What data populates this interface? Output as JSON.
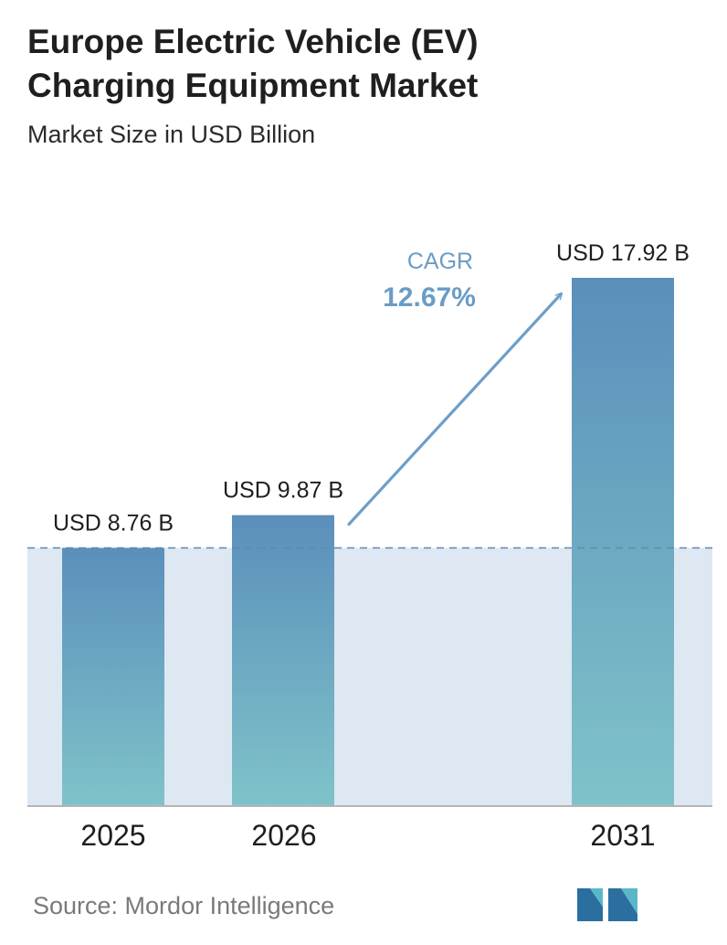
{
  "header": {
    "title_line1": "Europe Electric Vehicle (EV)",
    "title_line2": "Charging Equipment Market",
    "subtitle": "Market Size in USD Billion"
  },
  "colors": {
    "bar_top": "#5b8fbb",
    "bar_bottom": "#7fc3c9",
    "band": "#dde8f2",
    "dashed_line": "#5d89b3",
    "cagr_text": "#6a9cc6",
    "arrow": "#6e9ec8",
    "axis": "#b5b5b5"
  },
  "chart_data": {
    "type": "bar",
    "title": "Europe Electric Vehicle (EV) Charging Equipment Market",
    "subtitle": "Market Size in USD Billion",
    "categories": [
      "2025",
      "2026",
      "2031"
    ],
    "values": [
      8.76,
      9.87,
      17.92
    ],
    "value_labels": [
      "USD 8.76 B",
      "USD 9.87 B",
      "USD 17.92 B"
    ],
    "ylim": [
      0,
      17.92
    ],
    "grid": false,
    "annotation": {
      "label": "CAGR",
      "value": "12.67%"
    }
  },
  "footer": {
    "source": "Source:  Mordor Intelligence",
    "logo_icon": "mordor-intelligence-logo-icon"
  }
}
